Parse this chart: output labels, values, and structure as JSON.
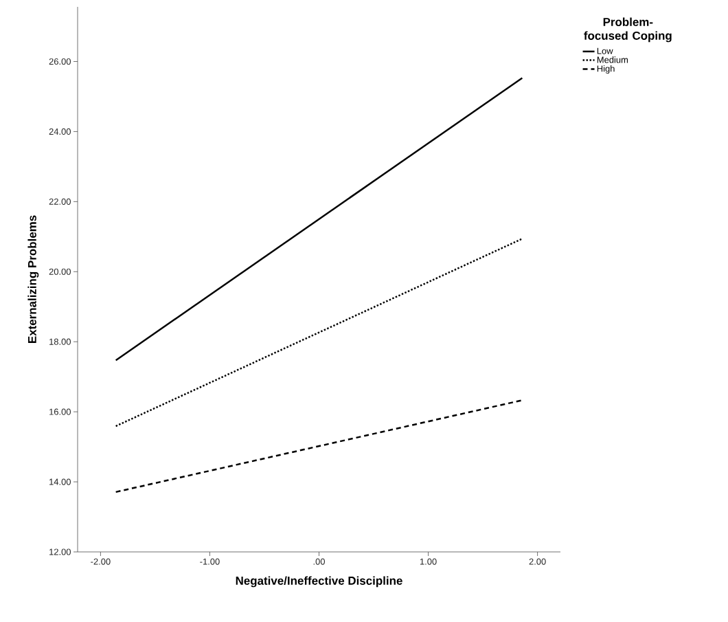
{
  "chart_data": {
    "type": "line",
    "xlabel": "Negative/Ineffective Discipline",
    "ylabel": "Externalizing Problems",
    "legend_title": "Problem-focused Coping",
    "legend": "top right",
    "grid": false,
    "marker": "none",
    "x": [
      -1.86,
      1.86
    ],
    "series": [
      {
        "name": "Low",
        "color": "#000000",
        "line_style": "solid",
        "values": [
          17.47,
          25.53
        ]
      },
      {
        "name": "Medium",
        "color": "#000000",
        "line_style": "dotted",
        "values": [
          15.59,
          20.94
        ]
      },
      {
        "name": "High",
        "color": "#000000",
        "line_style": "dashed",
        "values": [
          13.71,
          16.33
        ]
      }
    ],
    "xlim": [
      -2.21,
      2.21
    ],
    "ylim": [
      12,
      27.56
    ],
    "xticks": [
      {
        "value": -2,
        "label": "-2.00"
      },
      {
        "value": -1,
        "label": "-1.00"
      },
      {
        "value": 0,
        "label": ".00"
      },
      {
        "value": 1,
        "label": "1.00"
      },
      {
        "value": 2,
        "label": "2.00"
      }
    ],
    "yticks": [
      {
        "value": 12,
        "label": "12.00"
      },
      {
        "value": 14,
        "label": "14.00"
      },
      {
        "value": 16,
        "label": "16.00"
      },
      {
        "value": 18,
        "label": "18.00"
      },
      {
        "value": 20,
        "label": "20.00"
      },
      {
        "value": 22,
        "label": "22.00"
      },
      {
        "value": 24,
        "label": "24.00"
      },
      {
        "value": 26,
        "label": "26.00"
      }
    ]
  }
}
